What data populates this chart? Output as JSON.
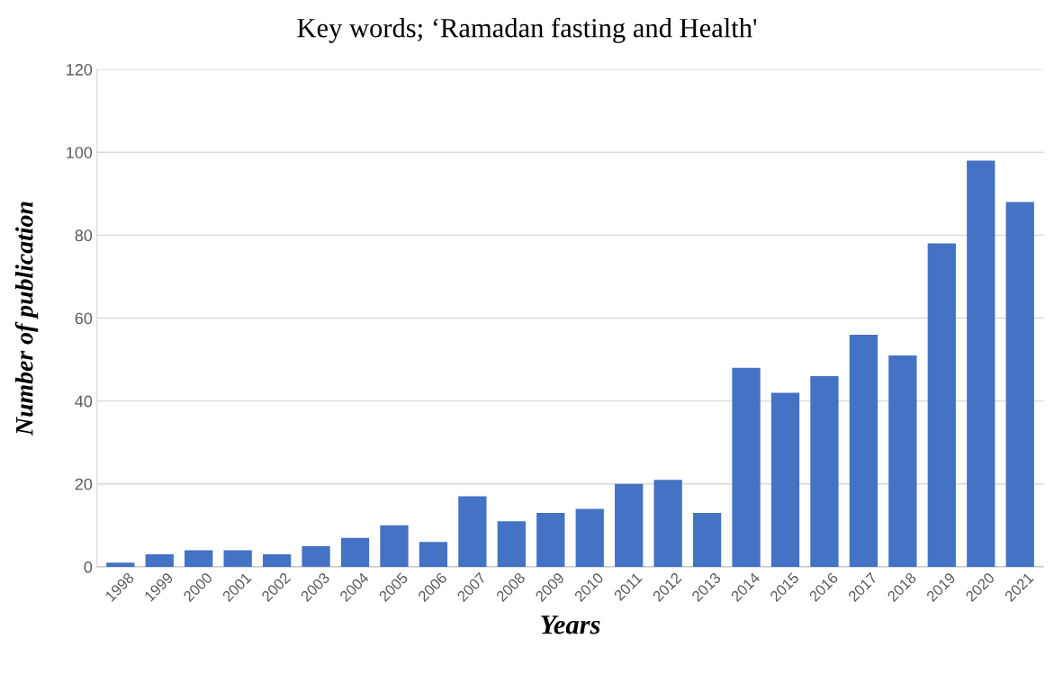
{
  "chart_data": {
    "type": "bar",
    "title": "Key words; ‘Ramadan fasting and Health'",
    "xlabel": "Years",
    "ylabel": "Number of publication",
    "categories": [
      "1998",
      "1999",
      "2000",
      "2001",
      "2002",
      "2003",
      "2004",
      "2005",
      "2006",
      "2007",
      "2008",
      "2009",
      "2010",
      "2011",
      "2012",
      "2013",
      "2014",
      "2015",
      "2016",
      "2017",
      "2018",
      "2019",
      "2020",
      "2021"
    ],
    "values": [
      1,
      3,
      4,
      4,
      3,
      5,
      7,
      10,
      6,
      17,
      11,
      13,
      14,
      20,
      21,
      13,
      48,
      42,
      46,
      56,
      51,
      78,
      98,
      88
    ],
    "color": "#4472c4",
    "ylim": [
      0,
      120
    ],
    "yticks": [
      0,
      20,
      40,
      60,
      80,
      100,
      120
    ],
    "grid": "y"
  }
}
